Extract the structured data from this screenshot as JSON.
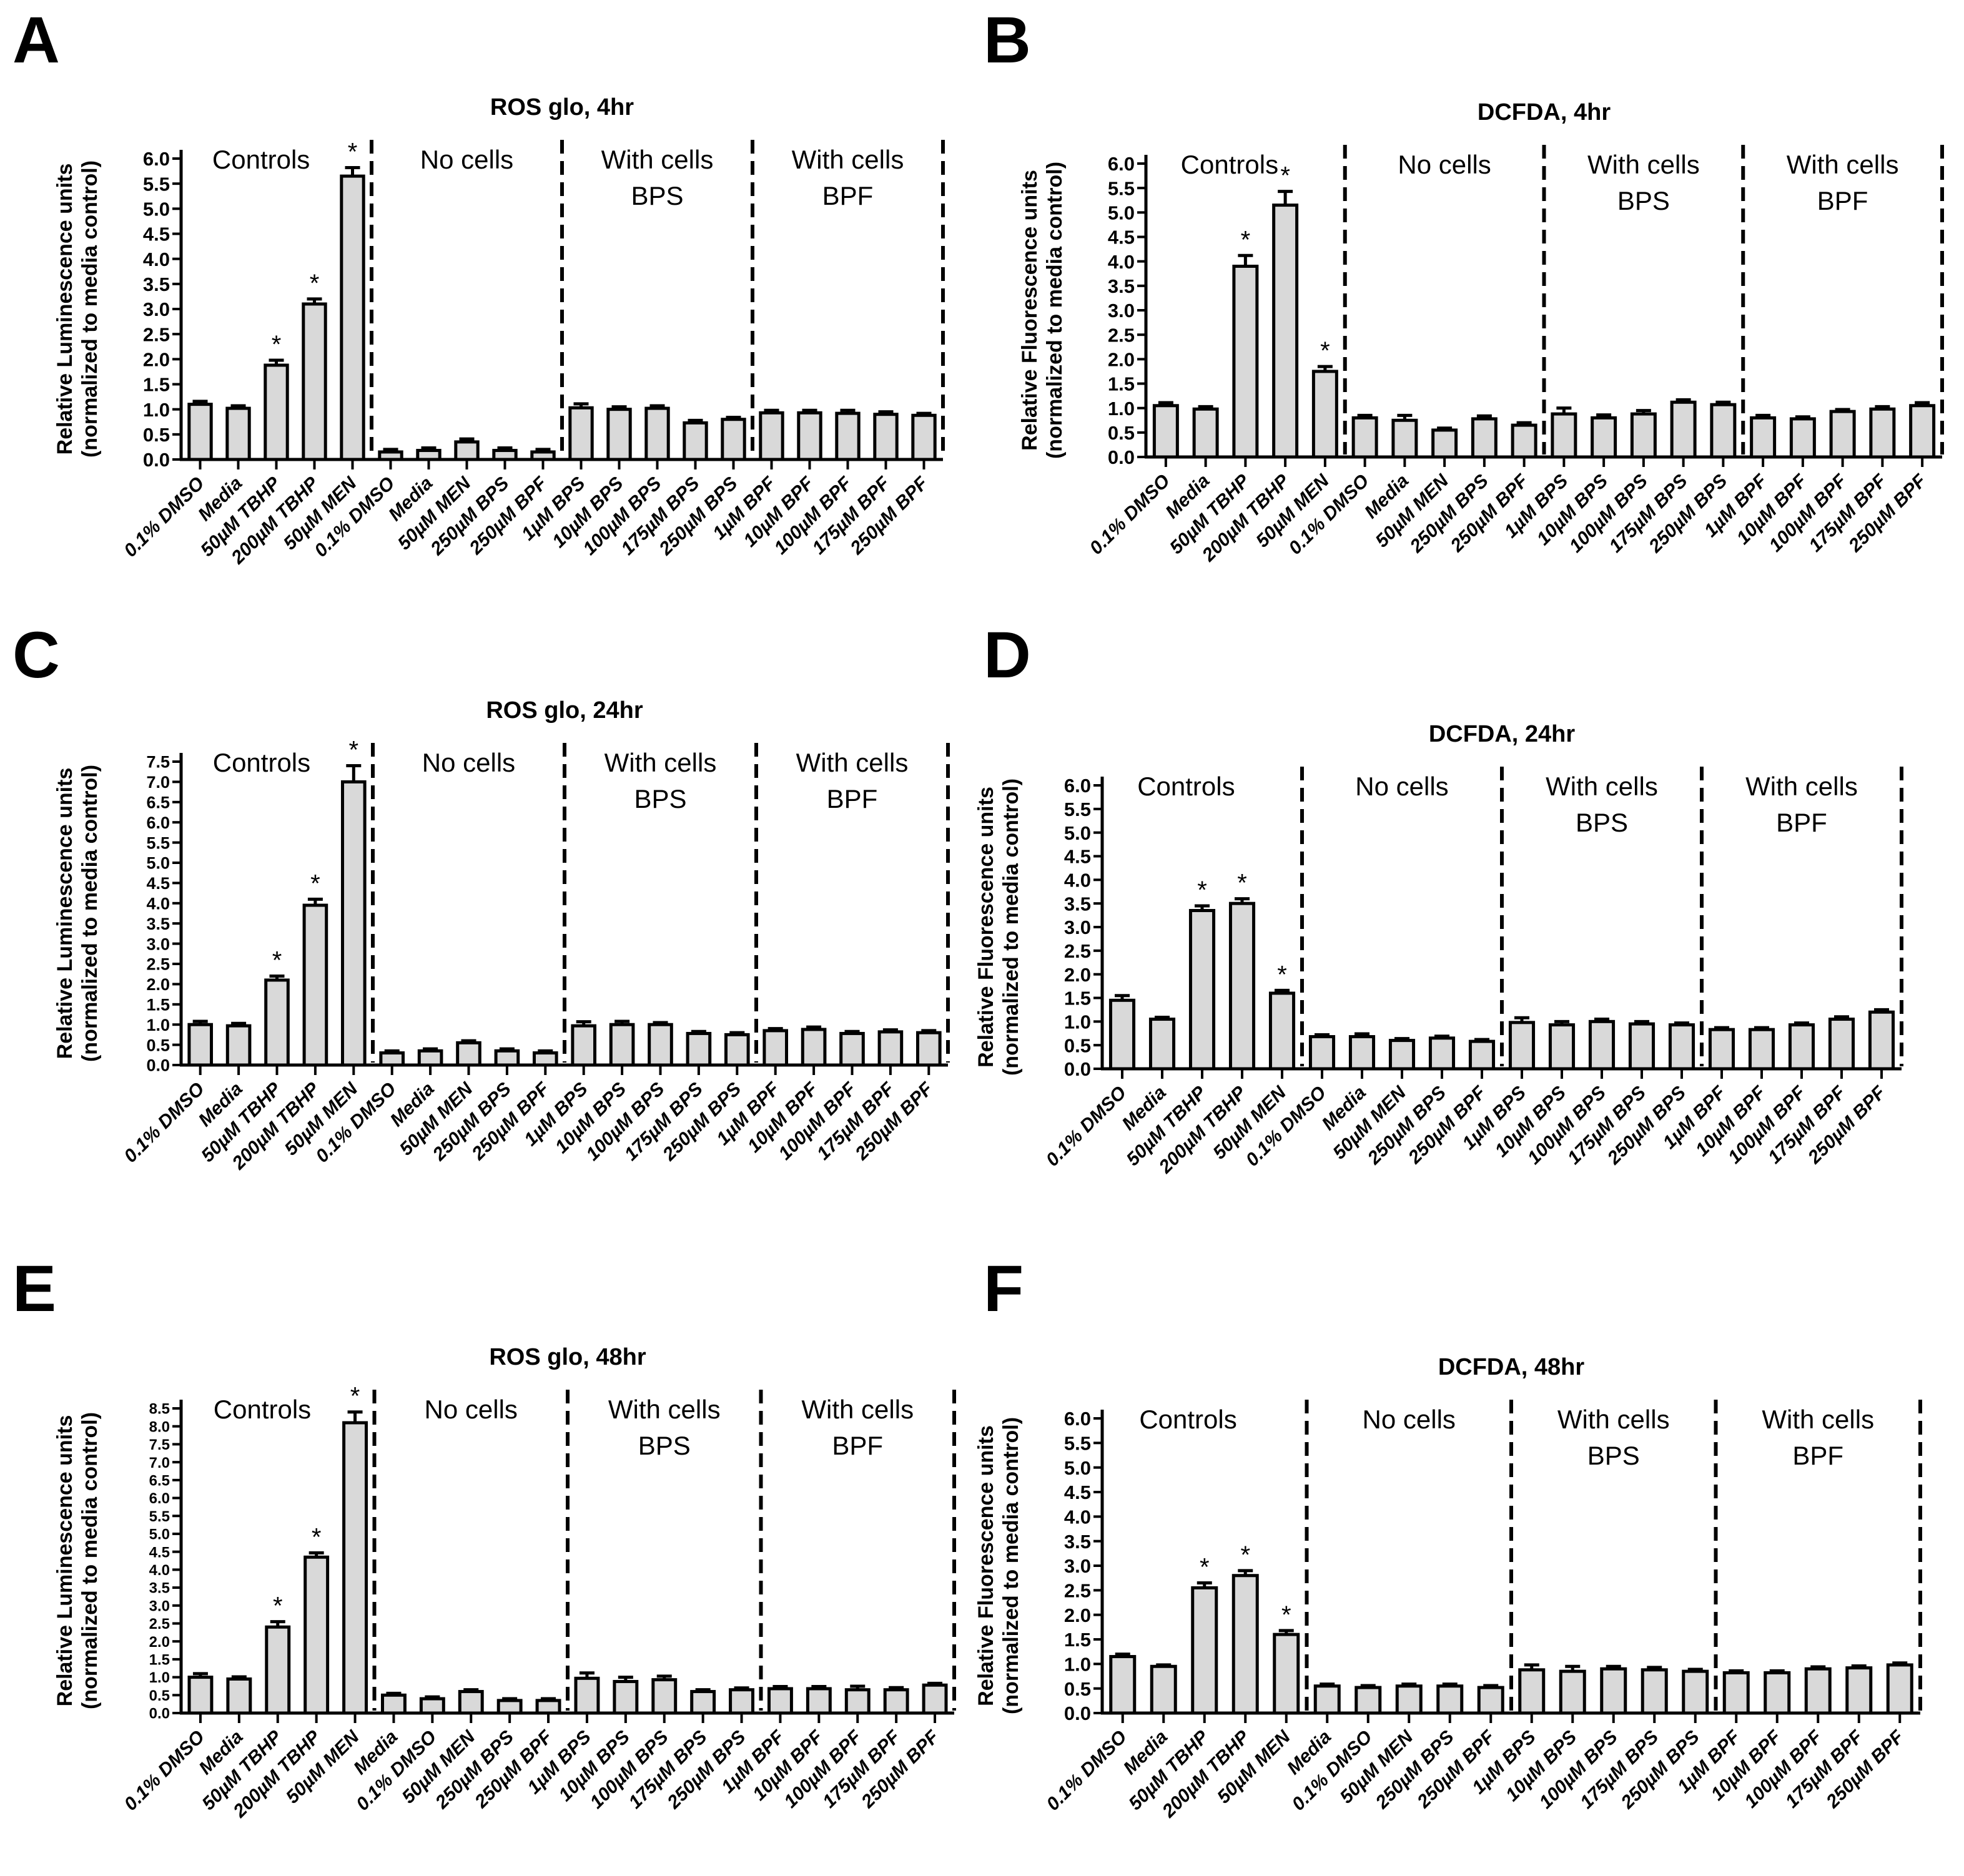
{
  "chart_data": [
    {
      "panel": "A",
      "type": "bar",
      "title": "ROS glo, 4hr",
      "ylabel": [
        "Relative Luminescence units",
        "(normalized to media control)"
      ],
      "ylim": [
        0,
        6.0
      ],
      "ytick_step": 0.5,
      "groups": [
        "Controls",
        "No cells",
        "With cells\nBPS",
        "With cells\nBPF"
      ],
      "categories": [
        "0.1% DMSO",
        "Media",
        "50µM TBHP",
        "200µM TBHP",
        "50µM MEN",
        "0.1% DMSO",
        "Media",
        "50µM MEN",
        "250µM BPS",
        "250µM BPF",
        "1µM BPS",
        "10µM BPS",
        "100µM BPS",
        "175µM BPS",
        "250µM BPS",
        "1µM BPF",
        "10µM BPF",
        "100µM BPF",
        "175µM BPF",
        "250µM BPF"
      ],
      "values": [
        1.1,
        1.02,
        1.88,
        3.1,
        5.65,
        0.15,
        0.18,
        0.35,
        0.18,
        0.15,
        1.03,
        1.0,
        1.02,
        0.73,
        0.8,
        0.93,
        0.93,
        0.92,
        0.9,
        0.88
      ],
      "errors": [
        0.06,
        0.05,
        0.1,
        0.1,
        0.17,
        0.05,
        0.05,
        0.06,
        0.05,
        0.05,
        0.08,
        0.05,
        0.05,
        0.05,
        0.04,
        0.05,
        0.05,
        0.06,
        0.05,
        0.04
      ],
      "significant": [
        2,
        3,
        4
      ]
    },
    {
      "panel": "B",
      "type": "bar",
      "title": "DCFDA, 4hr",
      "ylabel": [
        "Relative Fluorescence units",
        "(normalized to media control)"
      ],
      "ylim": [
        0,
        6.0
      ],
      "ytick_step": 0.5,
      "groups": [
        "Controls",
        "No cells",
        "With cells\nBPS",
        "With cells\nBPF"
      ],
      "categories": [
        "0.1% DMSO",
        "Media",
        "50µM TBHP",
        "200µM TBHP",
        "50µM MEN",
        "0.1% DMSO",
        "Media",
        "50µM MEN",
        "250µM BPS",
        "250µM BPF",
        "1µM BPS",
        "10µM BPS",
        "100µM BPS",
        "175µM BPS",
        "250µM BPS",
        "1µM BPF",
        "10µM BPF",
        "100µM BPF",
        "175µM BPF",
        "250µM BPF"
      ],
      "values": [
        1.05,
        0.98,
        3.9,
        5.15,
        1.75,
        0.8,
        0.75,
        0.55,
        0.78,
        0.65,
        0.88,
        0.8,
        0.88,
        1.12,
        1.07,
        0.8,
        0.78,
        0.93,
        0.98,
        1.05
      ],
      "errors": [
        0.06,
        0.05,
        0.22,
        0.28,
        0.1,
        0.05,
        0.1,
        0.04,
        0.06,
        0.05,
        0.12,
        0.06,
        0.07,
        0.05,
        0.05,
        0.05,
        0.04,
        0.04,
        0.05,
        0.06
      ],
      "significant": [
        2,
        3,
        4
      ]
    },
    {
      "panel": "C",
      "type": "bar",
      "title": "ROS glo, 24hr",
      "ylabel": [
        "Relative Luminescence units",
        "(normalized to media control)"
      ],
      "ylim": [
        0,
        7.5
      ],
      "ytick_step": 0.5,
      "groups": [
        "Controls",
        "No cells",
        "With cells\nBPS",
        "With cells\nBPF"
      ],
      "categories": [
        "0.1% DMSO",
        "Media",
        "50µM TBHP",
        "200µM TBHP",
        "50µM MEN",
        "0.1% DMSO",
        "Media",
        "50µM MEN",
        "250µM BPS",
        "250µM BPF",
        "1µM BPS",
        "10µM BPS",
        "100µM BPS",
        "175µM BPS",
        "250µM BPS",
        "1µM BPF",
        "10µM BPF",
        "100µM BPF",
        "175µM BPF",
        "250µM BPF"
      ],
      "values": [
        1.0,
        0.97,
        2.1,
        3.95,
        7.0,
        0.3,
        0.35,
        0.55,
        0.35,
        0.3,
        0.97,
        1.0,
        1.0,
        0.78,
        0.75,
        0.85,
        0.88,
        0.78,
        0.82,
        0.8
      ],
      "errors": [
        0.08,
        0.06,
        0.1,
        0.15,
        0.4,
        0.05,
        0.05,
        0.05,
        0.05,
        0.05,
        0.1,
        0.08,
        0.05,
        0.05,
        0.05,
        0.05,
        0.06,
        0.05,
        0.05,
        0.05
      ],
      "significant": [
        2,
        3,
        4
      ]
    },
    {
      "panel": "D",
      "type": "bar",
      "title": "DCFDA, 24hr",
      "ylabel": [
        "Relative Fluorescence units",
        "(normalized to media control)"
      ],
      "ylim": [
        0,
        6.0
      ],
      "ytick_step": 0.5,
      "groups": [
        "Controls",
        "No cells",
        "With cells\nBPS",
        "With cells\nBPF"
      ],
      "categories": [
        "0.1% DMSO",
        "Media",
        "50µM TBHP",
        "200µM TBHP",
        "50µM MEN",
        "0.1% DMSO",
        "Media",
        "50µM MEN",
        "250µM BPS",
        "250µM BPF",
        "1µM BPS",
        "10µM BPS",
        "100µM BPS",
        "175µM BPS",
        "250µM BPS",
        "1µM BPF",
        "10µM BPF",
        "100µM BPF",
        "175µM BPF",
        "250µM BPF"
      ],
      "values": [
        1.45,
        1.05,
        3.35,
        3.5,
        1.6,
        0.68,
        0.68,
        0.6,
        0.65,
        0.58,
        0.98,
        0.93,
        1.0,
        0.95,
        0.93,
        0.83,
        0.83,
        0.93,
        1.05,
        1.2
      ],
      "errors": [
        0.1,
        0.04,
        0.1,
        0.1,
        0.06,
        0.04,
        0.06,
        0.04,
        0.04,
        0.04,
        0.1,
        0.07,
        0.05,
        0.05,
        0.04,
        0.04,
        0.04,
        0.04,
        0.05,
        0.05
      ],
      "significant": [
        2,
        3,
        4
      ]
    },
    {
      "panel": "E",
      "type": "bar",
      "title": "ROS glo, 48hr",
      "ylabel": [
        "Relative Luminescence units",
        "(normalized to media control)"
      ],
      "ylim": [
        0,
        8.5
      ],
      "ytick_step": 0.5,
      "groups": [
        "Controls",
        "No cells",
        "With cells\nBPS",
        "With cells\nBPF"
      ],
      "categories": [
        "0.1% DMSO",
        "Media",
        "50µM TBHP",
        "200µM TBHP",
        "50µM MEN",
        "Media",
        "0.1% DMSO",
        "50µM MEN",
        "250µM BPS",
        "250µM BPF",
        "1µM BPS",
        "10µM BPS",
        "100µM BPS",
        "175µM BPS",
        "250µM BPS",
        "1µM BPF",
        "10µM BPF",
        "100µM BPF",
        "175µM BPF",
        "250µM BPF"
      ],
      "values": [
        1.0,
        0.95,
        2.4,
        4.35,
        8.1,
        0.5,
        0.4,
        0.6,
        0.35,
        0.35,
        0.97,
        0.88,
        0.93,
        0.6,
        0.65,
        0.68,
        0.68,
        0.65,
        0.65,
        0.78
      ],
      "errors": [
        0.1,
        0.06,
        0.15,
        0.12,
        0.3,
        0.05,
        0.05,
        0.05,
        0.05,
        0.05,
        0.15,
        0.12,
        0.1,
        0.05,
        0.05,
        0.06,
        0.06,
        0.1,
        0.06,
        0.05
      ],
      "significant": [
        2,
        3,
        4
      ]
    },
    {
      "panel": "F",
      "type": "bar",
      "title": "DCFDA, 48hr",
      "ylabel": [
        "Relative Fluorescence units",
        "(normalized to media control)"
      ],
      "ylim": [
        0,
        6.0
      ],
      "ytick_step": 0.5,
      "groups": [
        "Controls",
        "No cells",
        "With cells\nBPS",
        "With cells\nBPF"
      ],
      "categories": [
        "0.1% DMSO",
        "Media",
        "50µM TBHP",
        "200µM TBHP",
        "50µM MEN",
        "Media",
        "0.1% DMSO",
        "50µM MEN",
        "250µM BPS",
        "250µM BPF",
        "1µM BPS",
        "10µM BPS",
        "100µM BPS",
        "175µM BPS",
        "250µM BPS",
        "1µM BPF",
        "10µM BPF",
        "100µM BPF",
        "175µM BPF",
        "250µM BPF"
      ],
      "values": [
        1.15,
        0.95,
        2.55,
        2.8,
        1.6,
        0.55,
        0.52,
        0.55,
        0.55,
        0.52,
        0.88,
        0.85,
        0.9,
        0.88,
        0.85,
        0.82,
        0.82,
        0.9,
        0.92,
        0.98
      ],
      "errors": [
        0.05,
        0.03,
        0.1,
        0.1,
        0.08,
        0.04,
        0.04,
        0.04,
        0.04,
        0.04,
        0.1,
        0.1,
        0.05,
        0.05,
        0.04,
        0.04,
        0.04,
        0.04,
        0.04,
        0.04
      ],
      "significant": [
        2,
        3,
        4
      ]
    }
  ],
  "colors": {
    "bar_fill": "#d9d9d9",
    "stroke": "#000000"
  },
  "significance_marker": "*"
}
